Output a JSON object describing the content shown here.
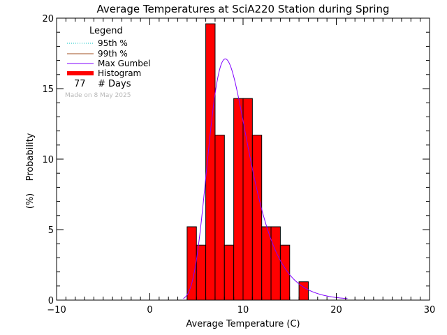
{
  "chart_data": {
    "type": "bar",
    "title": "Average Temperatures at SciA220 Station during Spring",
    "xlabel": "Average Temperature (C)",
    "ylabel": "Probability",
    "ylabel_unit": "(%)",
    "xlim": [
      -10,
      30
    ],
    "ylim": [
      0,
      20
    ],
    "x_ticks": [
      -10,
      0,
      10,
      20,
      30
    ],
    "x_tick_labels": [
      "−10",
      "0",
      "10",
      "20",
      "30"
    ],
    "y_ticks": [
      0,
      5,
      10,
      15,
      20
    ],
    "y_tick_labels": [
      "0",
      "5",
      "10",
      "15",
      "20"
    ],
    "grid": false,
    "legend_position": "top-left",
    "legend": {
      "title": "Legend",
      "items": [
        {
          "label": "95th %",
          "color": "#00c0c0",
          "style": "dotted"
        },
        {
          "label": "99th %",
          "color": "#a05020",
          "style": "solid"
        },
        {
          "label": "Max Gumbel",
          "color": "#8000ff",
          "style": "solid"
        },
        {
          "label": "Histogram",
          "color": "#ff0000",
          "style": "thick"
        }
      ],
      "days_count": "77",
      "days_label": "# Days",
      "made_on": "Made on 8 May 2025"
    },
    "histogram": {
      "color": "#ff0000",
      "bin_width": 1,
      "bins": [
        {
          "x0": 4,
          "value": 5.2
        },
        {
          "x0": 5,
          "value": 3.9
        },
        {
          "x0": 6,
          "value": 19.6
        },
        {
          "x0": 7,
          "value": 11.7
        },
        {
          "x0": 8,
          "value": 3.9
        },
        {
          "x0": 9,
          "value": 14.3
        },
        {
          "x0": 10,
          "value": 14.3
        },
        {
          "x0": 11,
          "value": 11.7
        },
        {
          "x0": 12,
          "value": 5.2
        },
        {
          "x0": 13,
          "value": 5.2
        },
        {
          "x0": 14,
          "value": 3.9
        },
        {
          "x0": 15,
          "value": 0
        },
        {
          "x0": 16,
          "value": 1.3
        }
      ]
    },
    "gumbel": {
      "color": "#8000ff",
      "mu": 8.1,
      "beta": 2.15,
      "x_range": [
        3.6,
        21.2
      ]
    }
  }
}
